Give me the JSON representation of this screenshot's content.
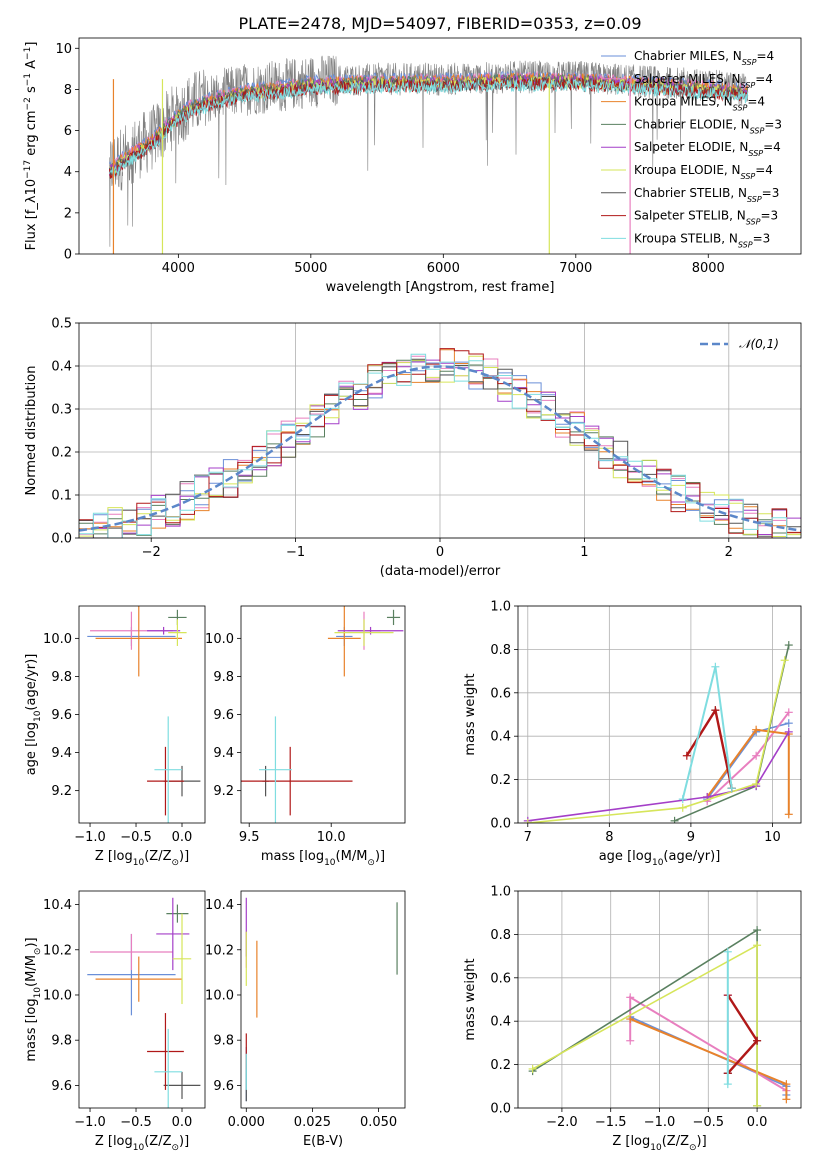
{
  "figure": {
    "title": "PLATE=2478, MJD=54097, FIBERID=0353, z=0.09"
  },
  "models": [
    {
      "name": "Chabrier MILES, N_SSP=4",
      "color": "#6a8fd8"
    },
    {
      "name": "Salpeter MILES, N_SSP=4",
      "color": "#e87fbf"
    },
    {
      "name": "Kroupa MILES, N_SSP=4",
      "color": "#e8822b"
    },
    {
      "name": "Chabrier ELODIE, N_SSP=3",
      "color": "#5a8060"
    },
    {
      "name": "Salpeter ELODIE, N_SSP=4",
      "color": "#a43fc8"
    },
    {
      "name": "Kroupa ELODIE, N_SSP=4",
      "color": "#d6e55a"
    },
    {
      "name": "Chabrier STELIB, N_SSP=3",
      "color": "#555555"
    },
    {
      "name": "Salpeter STELIB, N_SSP=3",
      "color": "#b01818"
    },
    {
      "name": "Kroupa STELIB, N_SSP=3",
      "color": "#7fdde0"
    }
  ],
  "chart_data": [
    {
      "id": "spectrum",
      "type": "line",
      "xlabel": "wavelength [Angstrom, rest frame]",
      "ylabel": "Flux [f_λ10^-17 erg cm^-2 s^-1 A^-1]",
      "xlim": [
        3250,
        8700
      ],
      "ylim": [
        0,
        10.5
      ],
      "xticks": [
        4000,
        5000,
        6000,
        7000,
        8000
      ],
      "yticks": [
        0,
        2,
        4,
        6,
        8,
        10
      ],
      "data_color": "#808080",
      "data_envelope": {
        "x": [
          3480,
          3600,
          3800,
          3950,
          4100,
          4300,
          4500,
          4800,
          5000,
          5500,
          6000,
          6500,
          7000,
          7500,
          8000,
          8300
        ],
        "y": [
          4.2,
          4.8,
          5.6,
          6.6,
          7.3,
          7.7,
          8.0,
          8.2,
          8.4,
          8.5,
          8.5,
          8.6,
          8.6,
          8.4,
          8.2,
          8.0
        ]
      },
      "legend_position": "right",
      "grid": false
    },
    {
      "id": "residuals",
      "type": "histogram",
      "xlabel": "(data-model)/error",
      "ylabel": "Normed distribution",
      "xlim": [
        -2.5,
        2.5
      ],
      "ylim": [
        0,
        0.5
      ],
      "xticks": [
        -2,
        -1,
        0,
        1,
        2
      ],
      "yticks": [
        0.0,
        0.1,
        0.2,
        0.3,
        0.4,
        0.5
      ],
      "gaussian_label": "𝒩(0,1)",
      "gaussian_color": "#5b87c9",
      "legend_position": "top-right",
      "grid": true
    },
    {
      "id": "age_vs_Z",
      "type": "errorbar",
      "xlabel": "Z [log10(Z/Z☉)]",
      "ylabel": "age [log10(age/yr)]",
      "xlim": [
        -1.12,
        0.25
      ],
      "ylim": [
        9.03,
        10.17
      ],
      "xticks": [
        -1.0,
        -0.5,
        0.0
      ],
      "yticks": [
        9.2,
        9.4,
        9.6,
        9.8,
        10.0
      ],
      "points": [
        {
          "model": 0,
          "x": -0.55,
          "xerr": 0.48,
          "y": 10.01,
          "yerr": 0.05
        },
        {
          "model": 1,
          "x": -0.55,
          "xerr": 0.45,
          "y": 10.04,
          "yerr": 0.1
        },
        {
          "model": 2,
          "x": -0.47,
          "xerr": 0.47,
          "y": 10.0,
          "yerr": 0.2
        },
        {
          "model": 3,
          "x": -0.05,
          "xerr": 0.1,
          "y": 10.11,
          "yerr": 0.04
        },
        {
          "model": 4,
          "x": -0.2,
          "xerr": 0.18,
          "y": 10.04,
          "yerr": 0.02
        },
        {
          "model": 5,
          "x": -0.05,
          "xerr": 0.1,
          "y": 10.03,
          "yerr": 0.07
        },
        {
          "model": 6,
          "x": 0.0,
          "xerr": 0.2,
          "y": 9.25,
          "yerr": 0.08
        },
        {
          "model": 7,
          "x": -0.18,
          "xerr": 0.2,
          "y": 9.25,
          "yerr": 0.18
        },
        {
          "model": 8,
          "x": -0.15,
          "xerr": 0.15,
          "y": 9.31,
          "yerr": 0.28
        }
      ],
      "grid": false
    },
    {
      "id": "age_vs_mass",
      "type": "errorbar",
      "xlabel": "mass [log10(M/M☉)]",
      "ylabel": "",
      "xlim": [
        9.45,
        10.45
      ],
      "ylim": [
        9.03,
        10.17
      ],
      "xticks": [
        9.5,
        10.0
      ],
      "yticks": [
        9.2,
        9.4,
        9.6,
        9.8,
        10.0
      ],
      "points": [
        {
          "model": 0,
          "x": 10.08,
          "xerr": 0.05,
          "y": 10.01,
          "yerr": 0.05
        },
        {
          "model": 1,
          "x": 10.2,
          "xerr": 0.1,
          "y": 10.04,
          "yerr": 0.1
        },
        {
          "model": 2,
          "x": 10.08,
          "xerr": 0.1,
          "y": 10.0,
          "yerr": 0.2
        },
        {
          "model": 3,
          "x": 10.38,
          "xerr": 0.04,
          "y": 10.11,
          "yerr": 0.04
        },
        {
          "model": 4,
          "x": 10.24,
          "xerr": 0.2,
          "y": 10.04,
          "yerr": 0.02
        },
        {
          "model": 5,
          "x": 10.2,
          "xerr": 0.18,
          "y": 10.03,
          "yerr": 0.07
        },
        {
          "model": 6,
          "x": 9.6,
          "xerr": 0.02,
          "y": 9.25,
          "yerr": 0.08
        },
        {
          "model": 7,
          "x": 9.75,
          "xerr": 0.38,
          "y": 9.25,
          "yerr": 0.18
        },
        {
          "model": 8,
          "x": 9.66,
          "xerr": 0.1,
          "y": 9.31,
          "yerr": 0.28
        }
      ],
      "grid": false
    },
    {
      "id": "massweight_vs_age",
      "type": "line",
      "xlabel": "age [log10(age/yr)]",
      "ylabel": "mass weight",
      "xlim": [
        6.88,
        10.35
      ],
      "ylim": [
        0,
        1.0
      ],
      "xticks": [
        7,
        8,
        9,
        10
      ],
      "yticks": [
        0.0,
        0.2,
        0.4,
        0.6,
        0.8,
        1.0
      ],
      "series": [
        {
          "model": 0,
          "x": [
            9.2,
            9.8,
            10.2
          ],
          "y": [
            0.11,
            0.42,
            0.46
          ]
        },
        {
          "model": 1,
          "x": [
            9.2,
            9.8,
            10.2
          ],
          "y": [
            0.1,
            0.31,
            0.51
          ]
        },
        {
          "model": 2,
          "x": [
            9.2,
            9.8,
            10.2,
            10.2
          ],
          "y": [
            0.12,
            0.43,
            0.41,
            0.04
          ]
        },
        {
          "model": 3,
          "x": [
            8.8,
            9.8,
            10.2
          ],
          "y": [
            0.01,
            0.17,
            0.82
          ]
        },
        {
          "model": 4,
          "x": [
            7.0,
            9.2,
            9.8,
            10.2
          ],
          "y": [
            0.01,
            0.12,
            0.17,
            0.42
          ]
        },
        {
          "model": 5,
          "x": [
            7.0,
            8.9,
            9.8,
            10.15
          ],
          "y": [
            0.0,
            0.07,
            0.18,
            0.75
          ]
        },
        {
          "model": 6,
          "x": [
            9.3,
            9.5
          ],
          "y": [
            0.52,
            0.16
          ]
        },
        {
          "model": 7,
          "x": [
            8.95,
            9.3,
            9.5
          ],
          "y": [
            0.31,
            0.52,
            0.16
          ]
        },
        {
          "model": 8,
          "x": [
            8.9,
            9.3,
            9.5
          ],
          "y": [
            0.11,
            0.72,
            0.16
          ]
        }
      ],
      "grid": true
    },
    {
      "id": "mass_vs_Z",
      "type": "errorbar",
      "xlabel": "Z [log10(Z/Z☉)]",
      "ylabel": "mass [log10(M/M☉)]",
      "xlim": [
        -1.12,
        0.25
      ],
      "ylim": [
        9.5,
        10.46
      ],
      "xticks": [
        -1.0,
        -0.5,
        0.0
      ],
      "yticks": [
        9.6,
        9.8,
        10.0,
        10.2,
        10.4
      ],
      "points": [
        {
          "model": 0,
          "x": -0.55,
          "xerr": 0.48,
          "y": 10.09,
          "yerr": 0.18
        },
        {
          "model": 1,
          "x": -0.55,
          "xerr": 0.45,
          "y": 10.19,
          "yerr": 0.08
        },
        {
          "model": 2,
          "x": -0.47,
          "xerr": 0.47,
          "y": 10.07,
          "yerr": 0.1
        },
        {
          "model": 3,
          "x": -0.05,
          "xerr": 0.12,
          "y": 10.36,
          "yerr": 0.04
        },
        {
          "model": 4,
          "x": -0.1,
          "xerr": 0.18,
          "y": 10.27,
          "yerr": 0.16
        },
        {
          "model": 5,
          "x": 0.0,
          "xerr": 0.1,
          "y": 10.16,
          "yerr": 0.2
        },
        {
          "model": 6,
          "x": 0.0,
          "xerr": 0.2,
          "y": 9.6,
          "yerr": 0.06
        },
        {
          "model": 7,
          "x": -0.18,
          "xerr": 0.2,
          "y": 9.75,
          "yerr": 0.17
        },
        {
          "model": 8,
          "x": -0.15,
          "xerr": 0.15,
          "y": 9.66,
          "yerr": 0.19
        }
      ],
      "grid": false
    },
    {
      "id": "mass_vs_ebv",
      "type": "errorbar",
      "xlabel": "E(B-V)",
      "ylabel": "",
      "xlim": [
        -0.002,
        0.06
      ],
      "ylim": [
        9.5,
        10.46
      ],
      "xticks": [
        0.0,
        0.025,
        0.05
      ],
      "xticklabels": [
        "0.000",
        "0.025",
        "0.050"
      ],
      "yticks": [
        9.6,
        9.8,
        10.0,
        10.2,
        10.4
      ],
      "points": [
        {
          "model": 0,
          "x": 0.0,
          "xerr": 0.0,
          "y": 9.65,
          "yerr": 0.12
        },
        {
          "model": 1,
          "x": 0.0,
          "xerr": 0.0,
          "y": 10.2,
          "yerr": 0.08
        },
        {
          "model": 2,
          "x": 0.004,
          "xerr": 0.0,
          "y": 10.07,
          "yerr": 0.17
        },
        {
          "model": 3,
          "x": 0.057,
          "xerr": 0.0,
          "y": 10.25,
          "yerr": 0.16
        },
        {
          "model": 4,
          "x": 0.0,
          "xerr": 0.0,
          "y": 10.3,
          "yerr": 0.13
        },
        {
          "model": 5,
          "x": 0.0,
          "xerr": 0.0,
          "y": 10.16,
          "yerr": 0.12
        },
        {
          "model": 6,
          "x": 0.0,
          "xerr": 0.0,
          "y": 9.6,
          "yerr": 0.07
        },
        {
          "model": 7,
          "x": 0.0,
          "xerr": 0.0,
          "y": 9.75,
          "yerr": 0.08
        },
        {
          "model": 8,
          "x": 0.0,
          "xerr": 0.0,
          "y": 9.66,
          "yerr": 0.08
        }
      ],
      "grid": false
    },
    {
      "id": "massweight_vs_Z",
      "type": "line",
      "xlabel": "Z [log10(Z/Z☉)]",
      "ylabel": "mass weight",
      "xlim": [
        -2.45,
        0.45
      ],
      "ylim": [
        0,
        1.0
      ],
      "xticks": [
        -2.0,
        -1.5,
        -1.0,
        -0.5,
        0.0
      ],
      "yticks": [
        0.0,
        0.2,
        0.4,
        0.6,
        0.8,
        1.0
      ],
      "series": [
        {
          "model": 0,
          "x": [
            -1.3,
            0.3,
            0.3
          ],
          "y": [
            0.42,
            0.1,
            0.06
          ]
        },
        {
          "model": 1,
          "x": [
            -1.3,
            -1.3,
            0.3
          ],
          "y": [
            0.31,
            0.51,
            0.08
          ]
        },
        {
          "model": 2,
          "x": [
            -1.3,
            0.3,
            0.3
          ],
          "y": [
            0.41,
            0.11,
            0.04
          ]
        },
        {
          "model": 3,
          "x": [
            -2.3,
            0.0,
            0.0
          ],
          "y": [
            0.17,
            0.82,
            0.01
          ]
        },
        {
          "model": 4,
          "x": [
            -0.3,
            -0.3
          ],
          "y": [
            0.16,
            0.52
          ]
        },
        {
          "model": 5,
          "x": [
            -2.3,
            0.0,
            0.0
          ],
          "y": [
            0.18,
            0.75,
            0.01
          ]
        },
        {
          "model": 6,
          "x": [
            -0.3,
            0.0
          ],
          "y": [
            0.16,
            0.31
          ]
        },
        {
          "model": 7,
          "x": [
            -0.3,
            0.0,
            -0.3
          ],
          "y": [
            0.16,
            0.31,
            0.52
          ]
        },
        {
          "model": 8,
          "x": [
            -0.3,
            -0.3
          ],
          "y": [
            0.11,
            0.72
          ]
        }
      ],
      "grid": true
    }
  ]
}
